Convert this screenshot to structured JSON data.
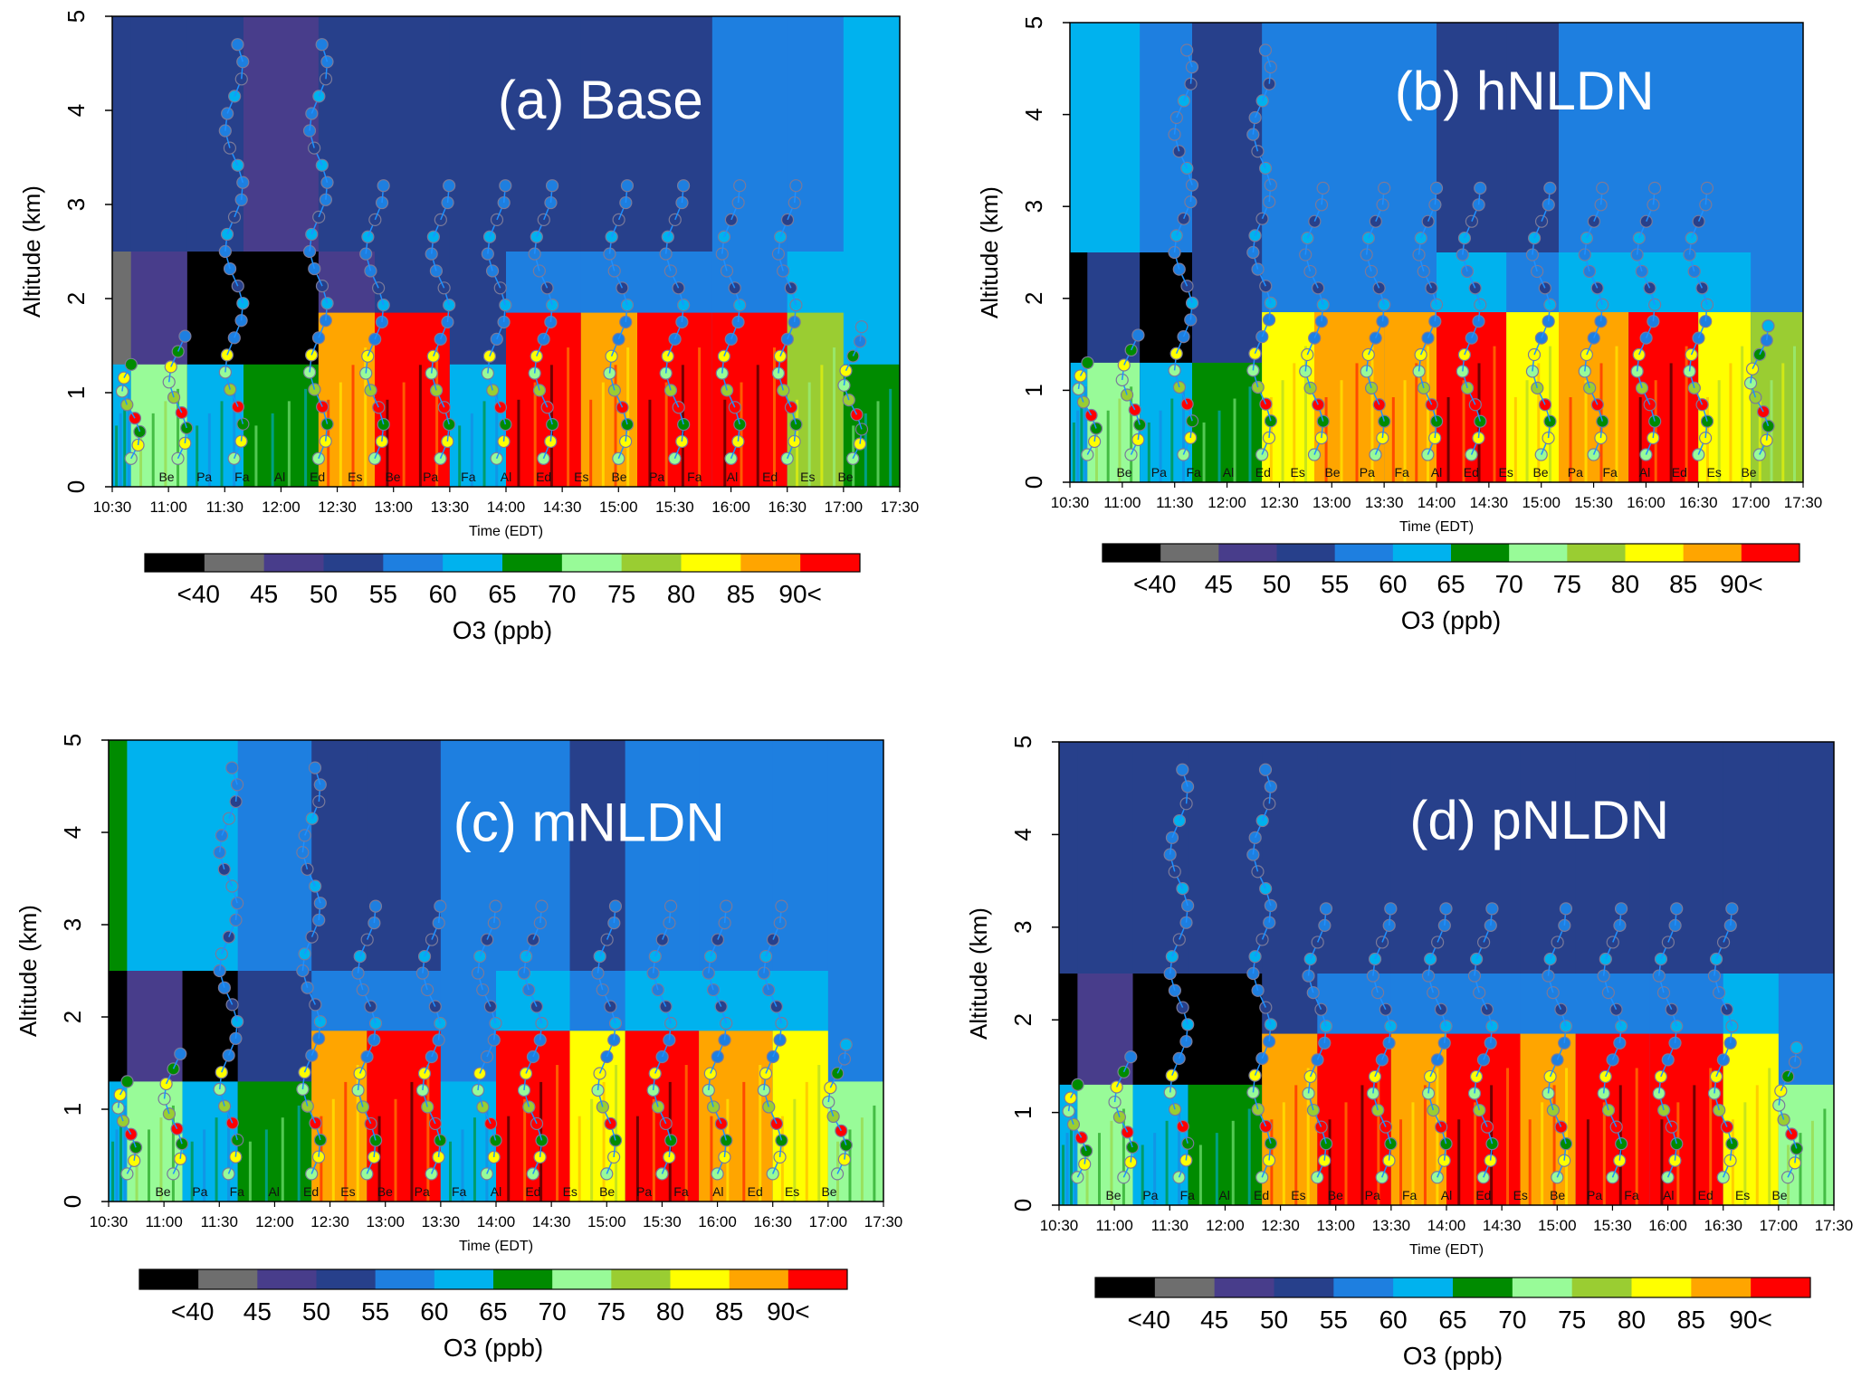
{
  "figure": {
    "panels": [
      {
        "label": "(a) Base",
        "xlabel": "Time (EDT)",
        "ylabel": "Altitude (km)",
        "xticks": [
          "10:30",
          "11:00",
          "11:30",
          "12:00",
          "12:30",
          "13:00",
          "13:30",
          "14:00",
          "14:30",
          "15:00",
          "15:30",
          "16:00",
          "16:30",
          "17:00",
          "17:30"
        ],
        "yticks": [
          "0",
          "1",
          "2",
          "3",
          "4",
          "5"
        ],
        "site_labels": [
          "Be",
          "Pa",
          "Fa",
          "Al",
          "Ed",
          "Es",
          "Be",
          "Pa",
          "Fa",
          "Al",
          "Ed",
          "Es",
          "Be",
          "Pa",
          "Fa",
          "Al",
          "Ed",
          "Es",
          "Be"
        ],
        "colorbar_ticks": [
          "<40",
          "45",
          "50",
          "55",
          "60",
          "65",
          "70",
          "75",
          "80",
          "85",
          "90<"
        ],
        "colorbar_label": "O3 (ppb)"
      },
      {
        "label": "(b) hNLDN",
        "xlabel": "Time (EDT)",
        "ylabel": "Altitude (km)",
        "xticks": [
          "10:30",
          "11:00",
          "11:30",
          "12:00",
          "12:30",
          "13:00",
          "13:30",
          "14:00",
          "14:30",
          "15:00",
          "15:30",
          "16:00",
          "16:30",
          "17:00",
          "17:30"
        ],
        "yticks": [
          "0",
          "1",
          "2",
          "3",
          "4",
          "5"
        ],
        "site_labels": [
          "Be",
          "Pa",
          "Fa",
          "Al",
          "Ed",
          "Es",
          "Be",
          "Pa",
          "Fa",
          "Al",
          "Ed",
          "Es",
          "Be",
          "Pa",
          "Fa",
          "Al",
          "Ed",
          "Es",
          "Be"
        ],
        "colorbar_ticks": [
          "<40",
          "45",
          "50",
          "55",
          "60",
          "65",
          "70",
          "75",
          "80",
          "85",
          "90<"
        ],
        "colorbar_label": "O3 (ppb)"
      },
      {
        "label": "(c) mNLDN",
        "xlabel": "Time (EDT)",
        "ylabel": "Altitude (km)",
        "xticks": [
          "10:30",
          "11:00",
          "11:30",
          "12:00",
          "12:30",
          "13:00",
          "13:30",
          "14:00",
          "14:30",
          "15:00",
          "15:30",
          "16:00",
          "16:30",
          "17:00",
          "17:30"
        ],
        "yticks": [
          "0",
          "1",
          "2",
          "3",
          "4",
          "5"
        ],
        "site_labels": [
          "Be",
          "Pa",
          "Fa",
          "Al",
          "Ed",
          "Es",
          "Be",
          "Pa",
          "Fa",
          "Al",
          "Ed",
          "Es",
          "Be",
          "Pa",
          "Fa",
          "Al",
          "Ed",
          "Es",
          "Be"
        ],
        "colorbar_ticks": [
          "<40",
          "45",
          "50",
          "55",
          "60",
          "65",
          "70",
          "75",
          "80",
          "85",
          "90<"
        ],
        "colorbar_label": "O3 (ppb)"
      },
      {
        "label": "(d) pNLDN",
        "xlabel": "Time (EDT)",
        "ylabel": "Altitude (km)",
        "xticks": [
          "10:30",
          "11:00",
          "11:30",
          "12:00",
          "12:30",
          "13:00",
          "13:30",
          "14:00",
          "14:30",
          "15:00",
          "15:30",
          "16:00",
          "16:30",
          "17:00",
          "17:30"
        ],
        "yticks": [
          "0",
          "1",
          "2",
          "3",
          "4",
          "5"
        ],
        "site_labels": [
          "Be",
          "Pa",
          "Fa",
          "Al",
          "Ed",
          "Es",
          "Be",
          "Pa",
          "Fa",
          "Al",
          "Ed",
          "Es",
          "Be",
          "Pa",
          "Fa",
          "Al",
          "Ed",
          "Es",
          "Be"
        ],
        "colorbar_ticks": [
          "<40",
          "45",
          "50",
          "55",
          "60",
          "65",
          "70",
          "75",
          "80",
          "85",
          "90<"
        ],
        "colorbar_label": "O3 (ppb)"
      }
    ]
  },
  "colors": {
    "bins": [
      "#000000",
      "#6e6e6e",
      "#483d8b",
      "#27408b",
      "#1e7fe0",
      "#00b2ee",
      "#008b00",
      "#98fb98",
      "#9acd32",
      "#ffff00",
      "#ffa500",
      "#ff0000"
    ]
  },
  "chart_data": [
    {
      "type": "heatmap",
      "title": "(a) Base",
      "xlabel": "Time (EDT)",
      "ylabel": "Altitude (km)",
      "xlim": [
        "10:30",
        "17:30"
      ],
      "ylim": [
        0,
        5
      ],
      "colorbar": {
        "label": "O3 (ppb)",
        "bins": [
          "<40",
          "40-45",
          "45-50",
          "50-55",
          "55-60",
          "60-65",
          "65-70",
          "70-75",
          "75-80",
          "80-85",
          "85-90",
          "90<"
        ]
      },
      "time_blocks": [
        {
          "from": "10:30",
          "to": "10:40",
          "low": "60-65",
          "mid": "40-45",
          "high": "50-55"
        },
        {
          "from": "10:40",
          "to": "11:10",
          "low": "70-75",
          "mid": "45-50",
          "high": "50-55"
        },
        {
          "from": "11:10",
          "to": "11:40",
          "low": "60-65",
          "mid": "<40",
          "high": "50-55"
        },
        {
          "from": "11:40",
          "to": "12:20",
          "low": "65-70",
          "mid": "<40",
          "high": "45-50"
        },
        {
          "from": "12:20",
          "to": "12:50",
          "low": "85-90",
          "mid": "45-50",
          "high": "50-55"
        },
        {
          "from": "12:50",
          "to": "13:30",
          "low": "90<",
          "mid": "50-55",
          "high": "50-55"
        },
        {
          "from": "13:30",
          "to": "14:00",
          "low": "60-65",
          "mid": "50-55",
          "high": "50-55"
        },
        {
          "from": "14:00",
          "to": "14:40",
          "low": "90<",
          "mid": "55-60",
          "high": "50-55"
        },
        {
          "from": "14:40",
          "to": "15:10",
          "low": "85-90",
          "mid": "55-60",
          "high": "50-55"
        },
        {
          "from": "15:10",
          "to": "15:50",
          "low": "90<",
          "mid": "55-60",
          "high": "50-55"
        },
        {
          "from": "15:50",
          "to": "16:30",
          "low": "90<",
          "mid": "55-60",
          "high": "55-60"
        },
        {
          "from": "16:30",
          "to": "17:00",
          "low": "75-80",
          "mid": "60-65",
          "high": "55-60"
        },
        {
          "from": "17:00",
          "to": "17:30",
          "low": "65-70",
          "mid": "60-65",
          "high": "60-65"
        }
      ],
      "flight_profiles": [
        {
          "time": "10:40",
          "max_alt_km": 1.3
        },
        {
          "time": "11:05",
          "max_alt_km": 1.6
        },
        {
          "time": "11:35",
          "max_alt_km": 4.7
        },
        {
          "time": "12:20",
          "max_alt_km": 4.7
        },
        {
          "time": "12:50",
          "max_alt_km": 3.2
        },
        {
          "time": "13:25",
          "max_alt_km": 3.2
        },
        {
          "time": "13:55",
          "max_alt_km": 3.2
        },
        {
          "time": "14:20",
          "max_alt_km": 3.2
        },
        {
          "time": "15:00",
          "max_alt_km": 3.2
        },
        {
          "time": "15:30",
          "max_alt_km": 3.2
        },
        {
          "time": "16:00",
          "max_alt_km": 3.2
        },
        {
          "time": "16:30",
          "max_alt_km": 3.2
        },
        {
          "time": "17:05",
          "max_alt_km": 1.7
        }
      ]
    },
    {
      "type": "heatmap",
      "title": "(b) hNLDN",
      "xlabel": "Time (EDT)",
      "ylabel": "Altitude (km)",
      "xlim": [
        "10:30",
        "17:30"
      ],
      "ylim": [
        0,
        5
      ],
      "colorbar": {
        "label": "O3 (ppb)",
        "bins": [
          "<40",
          "40-45",
          "45-50",
          "50-55",
          "55-60",
          "60-65",
          "65-70",
          "70-75",
          "75-80",
          "80-85",
          "85-90",
          "90<"
        ]
      },
      "time_blocks": [
        {
          "from": "10:30",
          "to": "10:40",
          "low": "60-65",
          "mid": "<40",
          "high": "60-65"
        },
        {
          "from": "10:40",
          "to": "11:10",
          "low": "70-75",
          "mid": "50-55",
          "high": "60-65"
        },
        {
          "from": "11:10",
          "to": "11:40",
          "low": "60-65",
          "mid": "<40",
          "high": "55-60"
        },
        {
          "from": "11:40",
          "to": "12:20",
          "low": "65-70",
          "mid": "50-55",
          "high": "50-55"
        },
        {
          "from": "12:20",
          "to": "12:50",
          "low": "80-85",
          "mid": "55-60",
          "high": "55-60"
        },
        {
          "from": "12:50",
          "to": "13:30",
          "low": "85-90",
          "mid": "55-60",
          "high": "55-60"
        },
        {
          "from": "13:30",
          "to": "14:00",
          "low": "85-90",
          "mid": "55-60",
          "high": "55-60"
        },
        {
          "from": "14:00",
          "to": "14:40",
          "low": "90<",
          "mid": "60-65",
          "high": "50-55"
        },
        {
          "from": "14:40",
          "to": "15:10",
          "low": "80-85",
          "mid": "55-60",
          "high": "50-55"
        },
        {
          "from": "15:10",
          "to": "15:50",
          "low": "85-90",
          "mid": "60-65",
          "high": "55-60"
        },
        {
          "from": "15:50",
          "to": "16:30",
          "low": "90<",
          "mid": "60-65",
          "high": "55-60"
        },
        {
          "from": "16:30",
          "to": "17:00",
          "low": "80-85",
          "mid": "60-65",
          "high": "55-60"
        },
        {
          "from": "17:00",
          "to": "17:30",
          "low": "75-80",
          "mid": "55-60",
          "high": "55-60"
        }
      ],
      "flight_profiles": [
        {
          "time": "10:40",
          "max_alt_km": 1.3
        },
        {
          "time": "11:05",
          "max_alt_km": 1.6
        },
        {
          "time": "11:35",
          "max_alt_km": 4.7
        },
        {
          "time": "12:20",
          "max_alt_km": 4.7
        },
        {
          "time": "12:50",
          "max_alt_km": 3.2
        },
        {
          "time": "13:25",
          "max_alt_km": 3.2
        },
        {
          "time": "13:55",
          "max_alt_km": 3.2
        },
        {
          "time": "14:20",
          "max_alt_km": 3.2
        },
        {
          "time": "15:00",
          "max_alt_km": 3.2
        },
        {
          "time": "15:30",
          "max_alt_km": 3.2
        },
        {
          "time": "16:00",
          "max_alt_km": 3.2
        },
        {
          "time": "16:30",
          "max_alt_km": 3.2
        },
        {
          "time": "17:05",
          "max_alt_km": 1.7
        }
      ]
    },
    {
      "type": "heatmap",
      "title": "(c) mNLDN",
      "xlabel": "Time (EDT)",
      "ylabel": "Altitude (km)",
      "xlim": [
        "10:30",
        "17:30"
      ],
      "ylim": [
        0,
        5
      ],
      "colorbar": {
        "label": "O3 (ppb)",
        "bins": [
          "<40",
          "40-45",
          "45-50",
          "50-55",
          "55-60",
          "60-65",
          "65-70",
          "70-75",
          "75-80",
          "80-85",
          "85-90",
          "90<"
        ]
      },
      "time_blocks": [
        {
          "from": "10:30",
          "to": "10:40",
          "low": "60-65",
          "mid": "<40",
          "high": "65-70"
        },
        {
          "from": "10:40",
          "to": "11:10",
          "low": "70-75",
          "mid": "45-50",
          "high": "60-65"
        },
        {
          "from": "11:10",
          "to": "11:40",
          "low": "60-65",
          "mid": "<40",
          "high": "60-65"
        },
        {
          "from": "11:40",
          "to": "12:20",
          "low": "65-70",
          "mid": "50-55",
          "high": "55-60"
        },
        {
          "from": "12:20",
          "to": "12:50",
          "low": "85-90",
          "mid": "55-60",
          "high": "50-55"
        },
        {
          "from": "12:50",
          "to": "13:30",
          "low": "90<",
          "mid": "55-60",
          "high": "50-55"
        },
        {
          "from": "13:30",
          "to": "14:00",
          "low": "60-65",
          "mid": "55-60",
          "high": "55-60"
        },
        {
          "from": "14:00",
          "to": "14:40",
          "low": "90<",
          "mid": "60-65",
          "high": "55-60"
        },
        {
          "from": "14:40",
          "to": "15:10",
          "low": "80-85",
          "mid": "55-60",
          "high": "50-55"
        },
        {
          "from": "15:10",
          "to": "15:50",
          "low": "90<",
          "mid": "60-65",
          "high": "55-60"
        },
        {
          "from": "15:50",
          "to": "16:30",
          "low": "85-90",
          "mid": "60-65",
          "high": "55-60"
        },
        {
          "from": "16:30",
          "to": "17:00",
          "low": "80-85",
          "mid": "60-65",
          "high": "55-60"
        },
        {
          "from": "17:00",
          "to": "17:30",
          "low": "70-75",
          "mid": "55-60",
          "high": "55-60"
        }
      ],
      "flight_profiles": [
        {
          "time": "10:40",
          "max_alt_km": 1.3
        },
        {
          "time": "11:05",
          "max_alt_km": 1.6
        },
        {
          "time": "11:35",
          "max_alt_km": 4.7
        },
        {
          "time": "12:20",
          "max_alt_km": 4.7
        },
        {
          "time": "12:50",
          "max_alt_km": 3.2
        },
        {
          "time": "13:25",
          "max_alt_km": 3.2
        },
        {
          "time": "13:55",
          "max_alt_km": 3.2
        },
        {
          "time": "14:20",
          "max_alt_km": 3.2
        },
        {
          "time": "15:00",
          "max_alt_km": 3.2
        },
        {
          "time": "15:30",
          "max_alt_km": 3.2
        },
        {
          "time": "16:00",
          "max_alt_km": 3.2
        },
        {
          "time": "16:30",
          "max_alt_km": 3.2
        },
        {
          "time": "17:05",
          "max_alt_km": 1.7
        }
      ]
    },
    {
      "type": "heatmap",
      "title": "(d) pNLDN",
      "xlabel": "Time (EDT)",
      "ylabel": "Altitude (km)",
      "xlim": [
        "10:30",
        "17:30"
      ],
      "ylim": [
        0,
        5
      ],
      "colorbar": {
        "label": "O3 (ppb)",
        "bins": [
          "<40",
          "40-45",
          "45-50",
          "50-55",
          "55-60",
          "60-65",
          "65-70",
          "70-75",
          "75-80",
          "80-85",
          "85-90",
          "90<"
        ]
      },
      "time_blocks": [
        {
          "from": "10:30",
          "to": "10:40",
          "low": "60-65",
          "mid": "<40",
          "high": "50-55"
        },
        {
          "from": "10:40",
          "to": "11:10",
          "low": "70-75",
          "mid": "45-50",
          "high": "50-55"
        },
        {
          "from": "11:10",
          "to": "11:40",
          "low": "60-65",
          "mid": "<40",
          "high": "50-55"
        },
        {
          "from": "11:40",
          "to": "12:20",
          "low": "65-70",
          "mid": "<40",
          "high": "50-55"
        },
        {
          "from": "12:20",
          "to": "12:50",
          "low": "85-90",
          "mid": "50-55",
          "high": "50-55"
        },
        {
          "from": "12:50",
          "to": "13:30",
          "low": "90<",
          "mid": "55-60",
          "high": "50-55"
        },
        {
          "from": "13:30",
          "to": "14:00",
          "low": "85-90",
          "mid": "55-60",
          "high": "50-55"
        },
        {
          "from": "14:00",
          "to": "14:40",
          "low": "90<",
          "mid": "55-60",
          "high": "50-55"
        },
        {
          "from": "14:40",
          "to": "15:10",
          "low": "85-90",
          "mid": "55-60",
          "high": "50-55"
        },
        {
          "from": "15:10",
          "to": "15:50",
          "low": "90<",
          "mid": "55-60",
          "high": "50-55"
        },
        {
          "from": "15:50",
          "to": "16:30",
          "low": "90<",
          "mid": "55-60",
          "high": "50-55"
        },
        {
          "from": "16:30",
          "to": "17:00",
          "low": "80-85",
          "mid": "60-65",
          "high": "50-55"
        },
        {
          "from": "17:00",
          "to": "17:30",
          "low": "70-75",
          "mid": "55-60",
          "high": "50-55"
        }
      ],
      "flight_profiles": [
        {
          "time": "10:40",
          "max_alt_km": 1.3
        },
        {
          "time": "11:05",
          "max_alt_km": 1.6
        },
        {
          "time": "11:35",
          "max_alt_km": 4.7
        },
        {
          "time": "12:20",
          "max_alt_km": 4.7
        },
        {
          "time": "12:50",
          "max_alt_km": 3.2
        },
        {
          "time": "13:25",
          "max_alt_km": 3.2
        },
        {
          "time": "13:55",
          "max_alt_km": 3.2
        },
        {
          "time": "14:20",
          "max_alt_km": 3.2
        },
        {
          "time": "15:00",
          "max_alt_km": 3.2
        },
        {
          "time": "15:30",
          "max_alt_km": 3.2
        },
        {
          "time": "16:00",
          "max_alt_km": 3.2
        },
        {
          "time": "16:30",
          "max_alt_km": 3.2
        },
        {
          "time": "17:05",
          "max_alt_km": 1.7
        }
      ]
    }
  ]
}
